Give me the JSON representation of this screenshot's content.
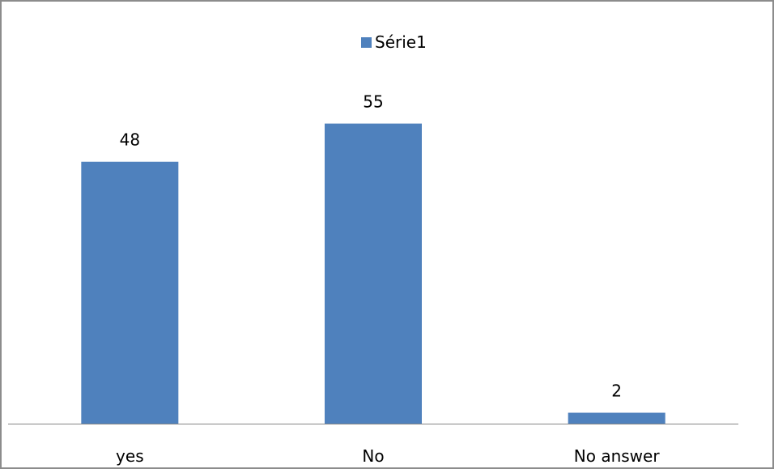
{
  "chart_data": {
    "type": "bar",
    "categories": [
      "yes",
      "No",
      "No answer"
    ],
    "series": [
      {
        "name": "Série1",
        "values": [
          48,
          55,
          2
        ],
        "color": "#4f81bd"
      }
    ],
    "legend": {
      "position": "top"
    },
    "ylim": [
      0,
      62
    ],
    "grid": false,
    "data_labels": true
  }
}
